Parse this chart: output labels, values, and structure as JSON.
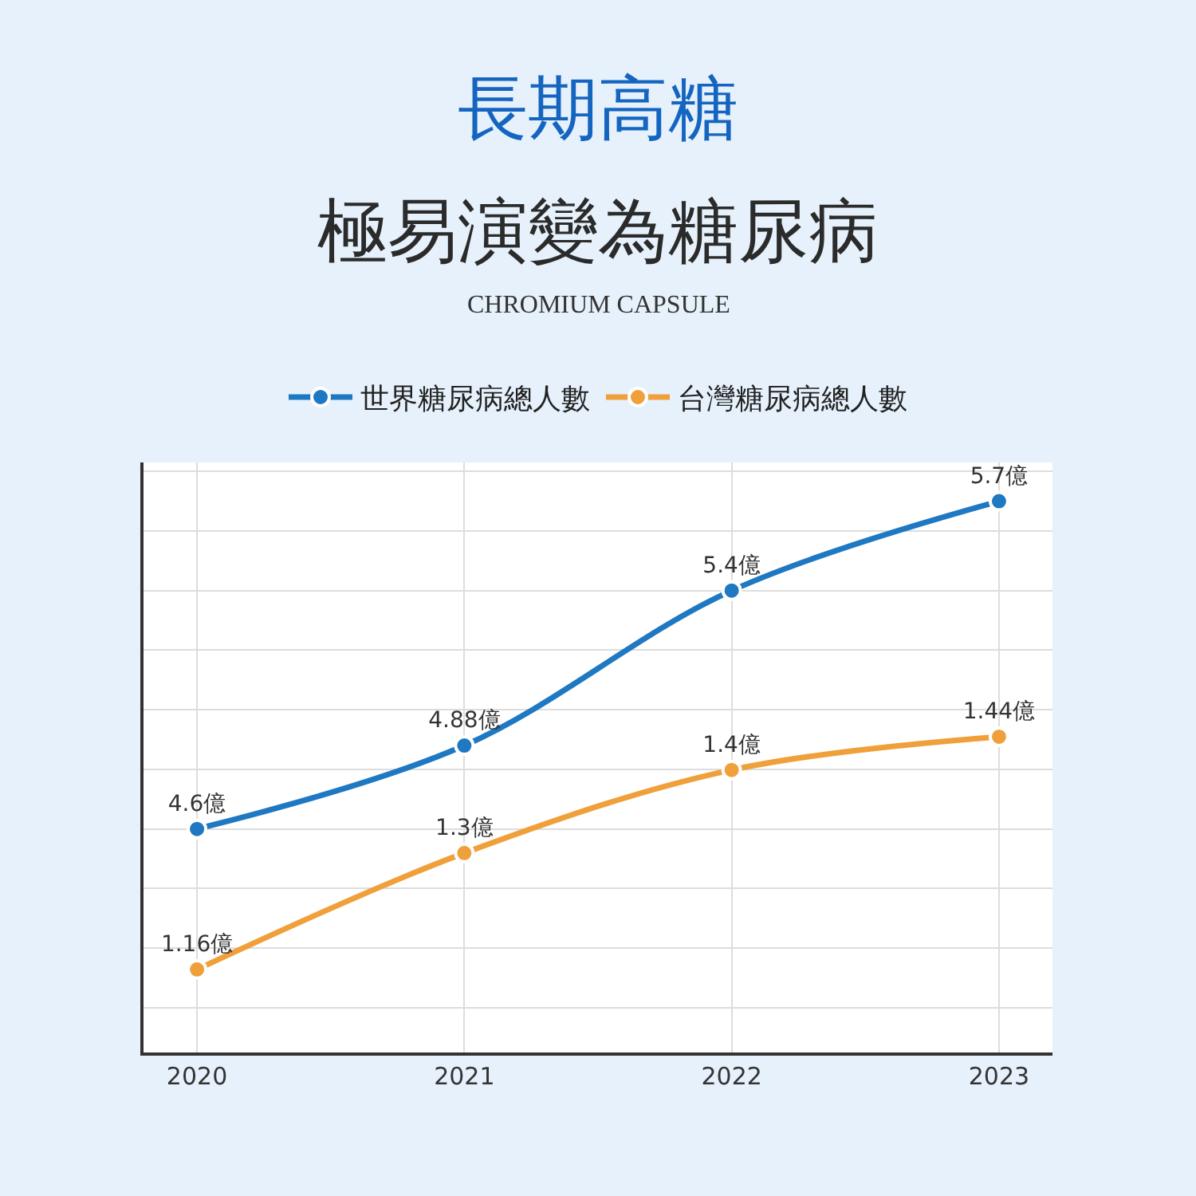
{
  "chart_data": {
    "type": "line",
    "title": "長期高糖",
    "subtitle": "極易演變為糖尿病",
    "annotations": [
      "CHROMIUM CAPSULE"
    ],
    "categories": [
      "2020",
      "2021",
      "2022",
      "2023"
    ],
    "series": [
      {
        "name": "世界糖尿病總人數",
        "color": "#1e78c2",
        "values": [
          4.6,
          4.88,
          5.4,
          5.7
        ],
        "value_labels": [
          "4.6億",
          "4.88億",
          "5.4億",
          "5.7億"
        ]
      },
      {
        "name": "台灣糖尿病總人數",
        "color": "#f0a03a",
        "values": [
          1.16,
          1.3,
          1.4,
          1.44
        ],
        "value_labels": [
          "1.16億",
          "1.3億",
          "1.4億",
          "1.44億"
        ],
        "axis": "y2"
      }
    ],
    "ylim": [
      3.85,
      5.83
    ],
    "y2lim": [
      1.06,
      1.77
    ],
    "marker": "circle",
    "line_style": "solid",
    "grid": true,
    "legend": "top",
    "tick_labels": "x"
  }
}
